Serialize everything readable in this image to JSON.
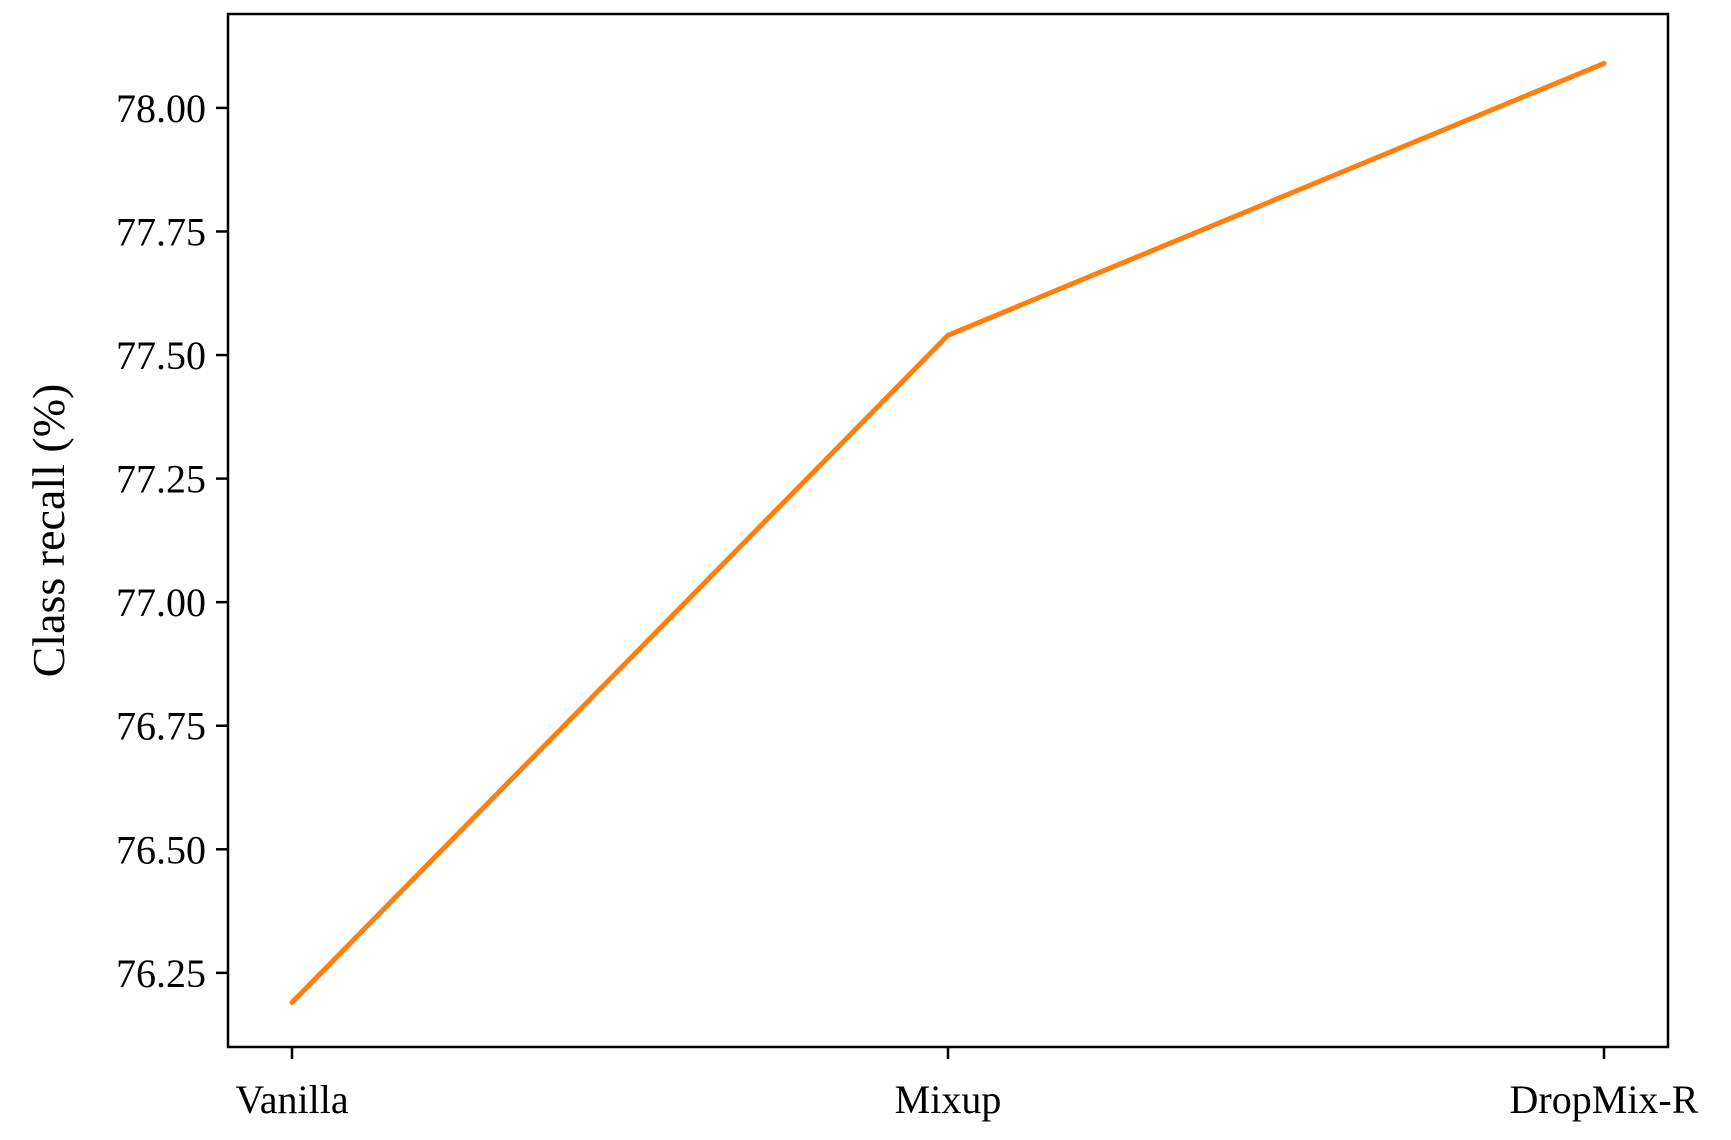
{
  "chart_data": {
    "type": "line",
    "categories": [
      "Vanilla",
      "Mixup",
      "DropMix-R"
    ],
    "series": [
      {
        "values": [
          76.19,
          77.54,
          78.09
        ],
        "color": "#ff7f0e"
      }
    ],
    "ylabel": "Class recall (%)",
    "xlabel": "",
    "title": "",
    "ylim": [
      76.1,
      78.19
    ],
    "yticks": [
      76.25,
      76.5,
      76.75,
      77.0,
      77.25,
      77.5,
      77.75,
      78.0
    ],
    "ytick_labels": [
      "76.25",
      "76.50",
      "76.75",
      "77.00",
      "77.25",
      "77.50",
      "77.75",
      "78.00"
    ],
    "grid": false,
    "legend": "none"
  }
}
